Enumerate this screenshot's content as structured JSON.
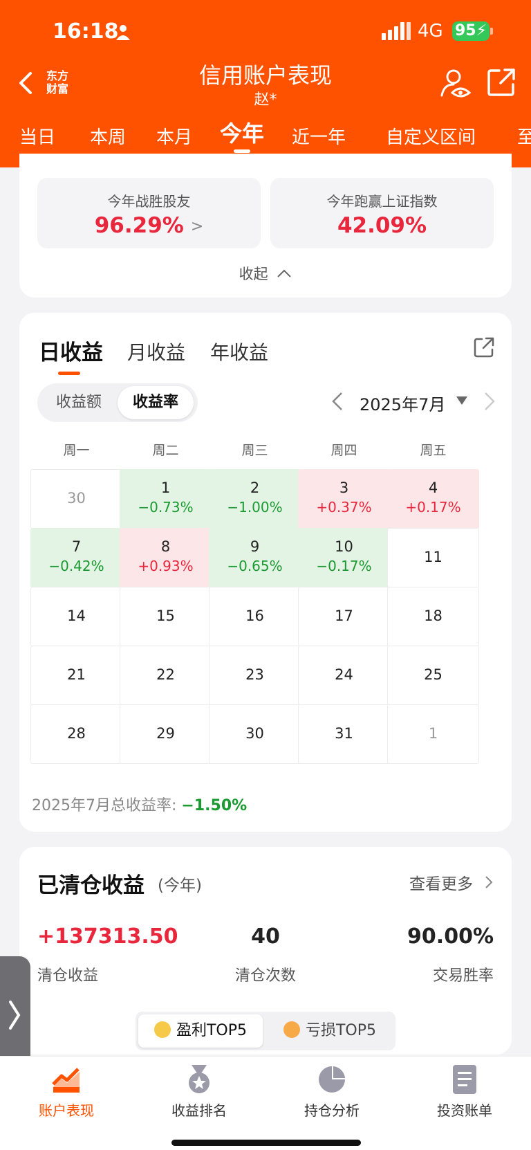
{
  "status_bar": {
    "time": "16:18",
    "network": "4G",
    "battery": "95"
  },
  "header": {
    "brand": "东方财富",
    "title": "信用账户表现",
    "subtitle": "赵*",
    "tabs": [
      "当日",
      "本周",
      "本月",
      "今年",
      "近一年",
      "自定义区间",
      "至"
    ],
    "active_tab": "今年"
  },
  "summary": {
    "beat_friends_label": "今年战胜股友",
    "beat_friends_value": "96.29%",
    "beat_index_label": "今年跑赢上证指数",
    "beat_index_value": "42.09%",
    "collapse_label": "收起"
  },
  "returns": {
    "tabs": [
      "日收益",
      "月收益",
      "年收益"
    ],
    "toggle": [
      "收益额",
      "收益率"
    ],
    "active_toggle": "收益率",
    "month": "2025年7月",
    "weekdays": [
      "周一",
      "周二",
      "周三",
      "周四",
      "周五"
    ],
    "days": [
      {
        "d": "30",
        "pct": "",
        "t": "muted"
      },
      {
        "d": "1",
        "pct": "−0.73%",
        "t": "down"
      },
      {
        "d": "2",
        "pct": "−1.00%",
        "t": "down"
      },
      {
        "d": "3",
        "pct": "+0.37%",
        "t": "up"
      },
      {
        "d": "4",
        "pct": "+0.17%",
        "t": "up"
      },
      {
        "d": "7",
        "pct": "−0.42%",
        "t": "down"
      },
      {
        "d": "8",
        "pct": "+0.93%",
        "t": "up"
      },
      {
        "d": "9",
        "pct": "−0.65%",
        "t": "down"
      },
      {
        "d": "10",
        "pct": "−0.17%",
        "t": "down"
      },
      {
        "d": "11",
        "pct": "",
        "t": ""
      },
      {
        "d": "14",
        "pct": "",
        "t": ""
      },
      {
        "d": "15",
        "pct": "",
        "t": ""
      },
      {
        "d": "16",
        "pct": "",
        "t": ""
      },
      {
        "d": "17",
        "pct": "",
        "t": ""
      },
      {
        "d": "18",
        "pct": "",
        "t": ""
      },
      {
        "d": "21",
        "pct": "",
        "t": ""
      },
      {
        "d": "22",
        "pct": "",
        "t": ""
      },
      {
        "d": "23",
        "pct": "",
        "t": ""
      },
      {
        "d": "24",
        "pct": "",
        "t": ""
      },
      {
        "d": "25",
        "pct": "",
        "t": ""
      },
      {
        "d": "28",
        "pct": "",
        "t": ""
      },
      {
        "d": "29",
        "pct": "",
        "t": ""
      },
      {
        "d": "30",
        "pct": "",
        "t": ""
      },
      {
        "d": "31",
        "pct": "",
        "t": ""
      },
      {
        "d": "1",
        "pct": "",
        "t": "muted"
      }
    ],
    "total_label": "2025年7月总收益率:",
    "total_value": "−1.50%"
  },
  "closed": {
    "title": "已清仓收益",
    "period": "(今年)",
    "view_more": "查看更多",
    "profit_value": "+137313.50",
    "profit_label": "清仓收益",
    "count_value": "40",
    "count_label": "清仓次数",
    "winrate_value": "90.00%",
    "winrate_label": "交易胜率",
    "segments": [
      "盈利TOP5",
      "亏损TOP5"
    ]
  },
  "bottom_nav": [
    "账户表现",
    "收益排名",
    "持仓分析",
    "投资账单"
  ],
  "colors": {
    "brand": "#ff5200",
    "up": "#e8273d",
    "down": "#1a9a30"
  }
}
